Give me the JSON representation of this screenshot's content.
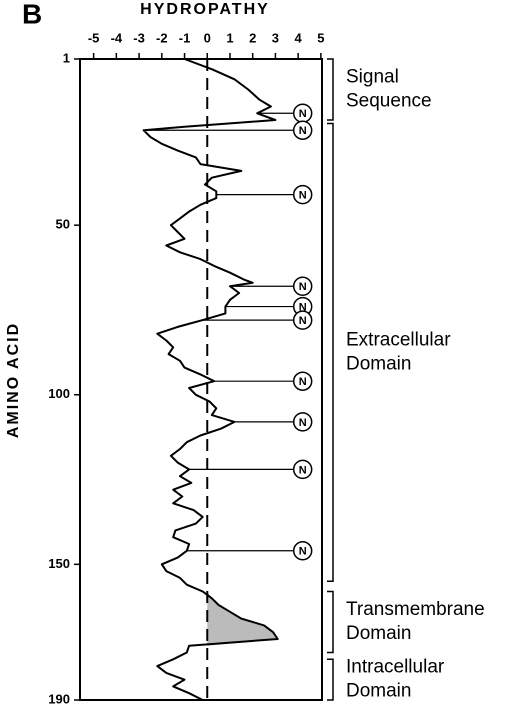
{
  "chart_data": {
    "type": "line",
    "panel": "B",
    "title": "HYDROPATHY",
    "y_label": "AMINO ACID",
    "xlim": [
      -5.6,
      5.05
    ],
    "xticks": [
      -5,
      -4,
      -3,
      -2,
      -1,
      0,
      1,
      2,
      3,
      4,
      5
    ],
    "ylim": [
      1,
      190
    ],
    "yticks": [
      1,
      50,
      100,
      150,
      190
    ],
    "zero_line": true,
    "color": "#000000",
    "x": [
      1,
      4,
      7,
      10,
      13,
      15,
      17,
      19,
      20,
      21,
      22,
      24,
      26,
      28,
      30,
      32,
      34,
      36,
      38,
      40,
      42,
      44,
      46,
      48,
      50,
      52,
      54,
      56,
      58,
      60,
      62,
      64,
      66,
      67,
      68,
      70,
      72,
      74,
      76,
      78,
      80,
      82,
      84,
      86,
      88,
      90,
      92,
      94,
      96,
      98,
      100,
      102,
      104,
      106,
      108,
      110,
      112,
      114,
      116,
      118,
      120,
      122,
      124,
      126,
      128,
      130,
      132,
      134,
      136,
      138,
      140,
      142,
      144,
      146,
      148,
      150,
      152,
      154,
      156,
      158,
      160,
      162,
      164,
      166,
      168,
      170,
      172,
      174,
      176,
      178,
      180,
      182,
      184,
      186,
      188,
      190
    ],
    "values": [
      -1.0,
      0.2,
      1.2,
      1.8,
      2.3,
      2.8,
      2.2,
      3.0,
      1.0,
      -1.0,
      -2.8,
      -2.5,
      -2.0,
      -1.3,
      -0.5,
      -0.3,
      1.5,
      0.2,
      -0.1,
      0.4,
      0.4,
      -0.3,
      -0.8,
      -1.2,
      -1.6,
      -1.3,
      -1.0,
      -1.8,
      -1.2,
      -0.3,
      0.3,
      1.0,
      1.6,
      2.0,
      1.0,
      1.4,
      1.0,
      0.8,
      0.8,
      -0.2,
      -1.3,
      -2.2,
      -1.8,
      -1.5,
      -1.7,
      -1.2,
      -1.0,
      -0.3,
      0.3,
      -0.8,
      -0.5,
      0.1,
      0.4,
      0.2,
      1.2,
      0.6,
      -0.3,
      -0.9,
      -1.2,
      -1.6,
      -1.3,
      -0.8,
      -1.2,
      -0.7,
      -1.5,
      -1.1,
      -1.5,
      -0.6,
      -0.2,
      -0.5,
      -1.4,
      -1.5,
      -0.8,
      -0.9,
      -1.3,
      -2.0,
      -1.8,
      -1.2,
      -0.9,
      -0.2,
      0.2,
      0.5,
      1.0,
      1.5,
      2.5,
      2.9,
      3.1,
      -0.8,
      -0.9,
      -1.5,
      -2.2,
      -1.8,
      -1.0,
      -1.5,
      -0.8,
      -0.2
    ],
    "sites": {
      "label": "N",
      "x": 4.2,
      "residues": [
        17,
        22,
        41,
        68,
        74,
        78,
        96,
        108,
        122,
        146
      ]
    },
    "domains": [
      {
        "lines": [
          "Signal",
          "Sequence"
        ],
        "start": 1,
        "end": 19
      },
      {
        "lines": [
          "Extracellular",
          "Domain"
        ],
        "start": 20,
        "end": 155
      },
      {
        "lines": [
          "Transmembrane",
          "Domain"
        ],
        "start": 158,
        "end": 176
      },
      {
        "lines": [
          "Intracellular",
          "Domain"
        ],
        "start": 178,
        "end": 190
      }
    ],
    "shaded_domain": 2
  }
}
